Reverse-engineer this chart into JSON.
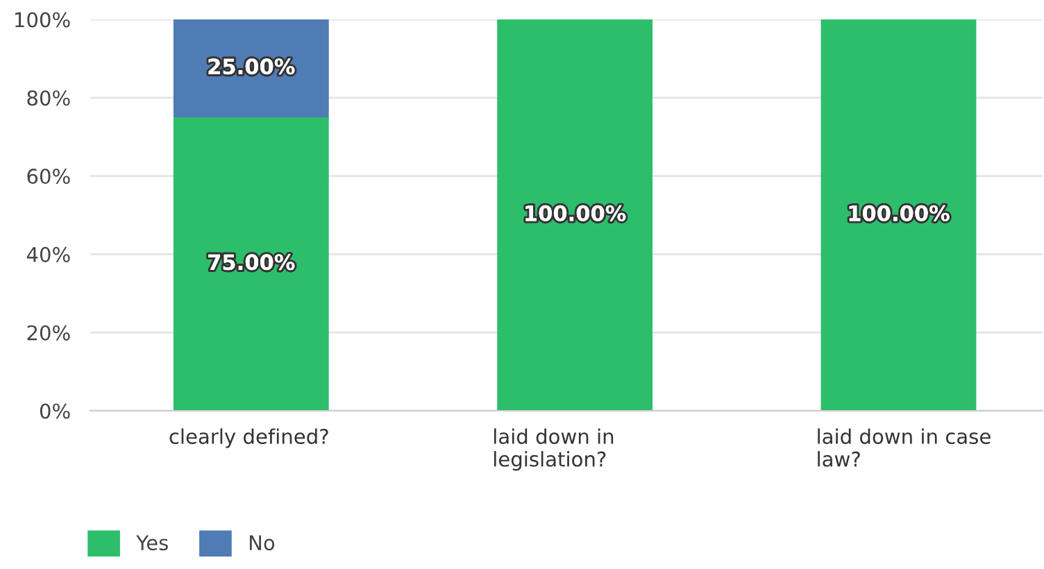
{
  "chart_data": {
    "type": "bar",
    "stacked": true,
    "categories": [
      "clearly defined?",
      "laid down in\nlegislation?",
      "laid down in case\nlaw?"
    ],
    "series": [
      {
        "name": "Yes",
        "color": "#2dbe6c",
        "values": [
          75,
          100,
          100
        ],
        "value_labels": [
          "75.00%",
          "100.00%",
          "100.00%"
        ]
      },
      {
        "name": "No",
        "color": "#507cb6",
        "values": [
          25,
          0,
          0
        ],
        "value_labels": [
          "25.00%",
          null,
          null
        ]
      }
    ],
    "ylim": [
      0,
      100
    ],
    "yticks": [
      {
        "value": 0,
        "label": "0%"
      },
      {
        "value": 20,
        "label": "20%"
      },
      {
        "value": 40,
        "label": "40%"
      },
      {
        "value": 60,
        "label": "60%"
      },
      {
        "value": 80,
        "label": "80%"
      },
      {
        "value": 100,
        "label": "100%"
      }
    ],
    "grid": "y",
    "legend": "bottom left"
  }
}
